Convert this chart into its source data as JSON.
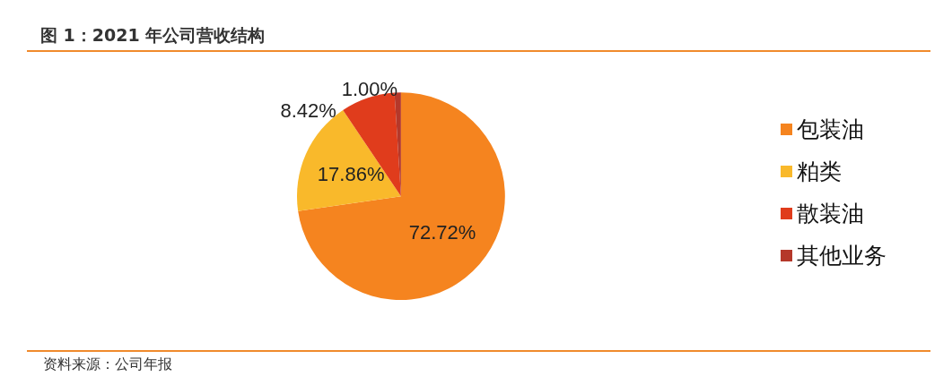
{
  "chart_data": {
    "type": "pie",
    "title": "图 1：2021 年公司营收结构",
    "categories": [
      "包装油",
      "粕类",
      "散装油",
      "其他业务"
    ],
    "values": [
      72.72,
      17.86,
      8.42,
      1.0
    ],
    "colors": [
      "#f5841f",
      "#f9b92b",
      "#e03c1c",
      "#b5382a"
    ],
    "value_labels": [
      "72.72%",
      "17.86%",
      "8.42%",
      "1.00%"
    ],
    "legend": "right",
    "annotations": [
      "资料来源：公司年报"
    ]
  }
}
